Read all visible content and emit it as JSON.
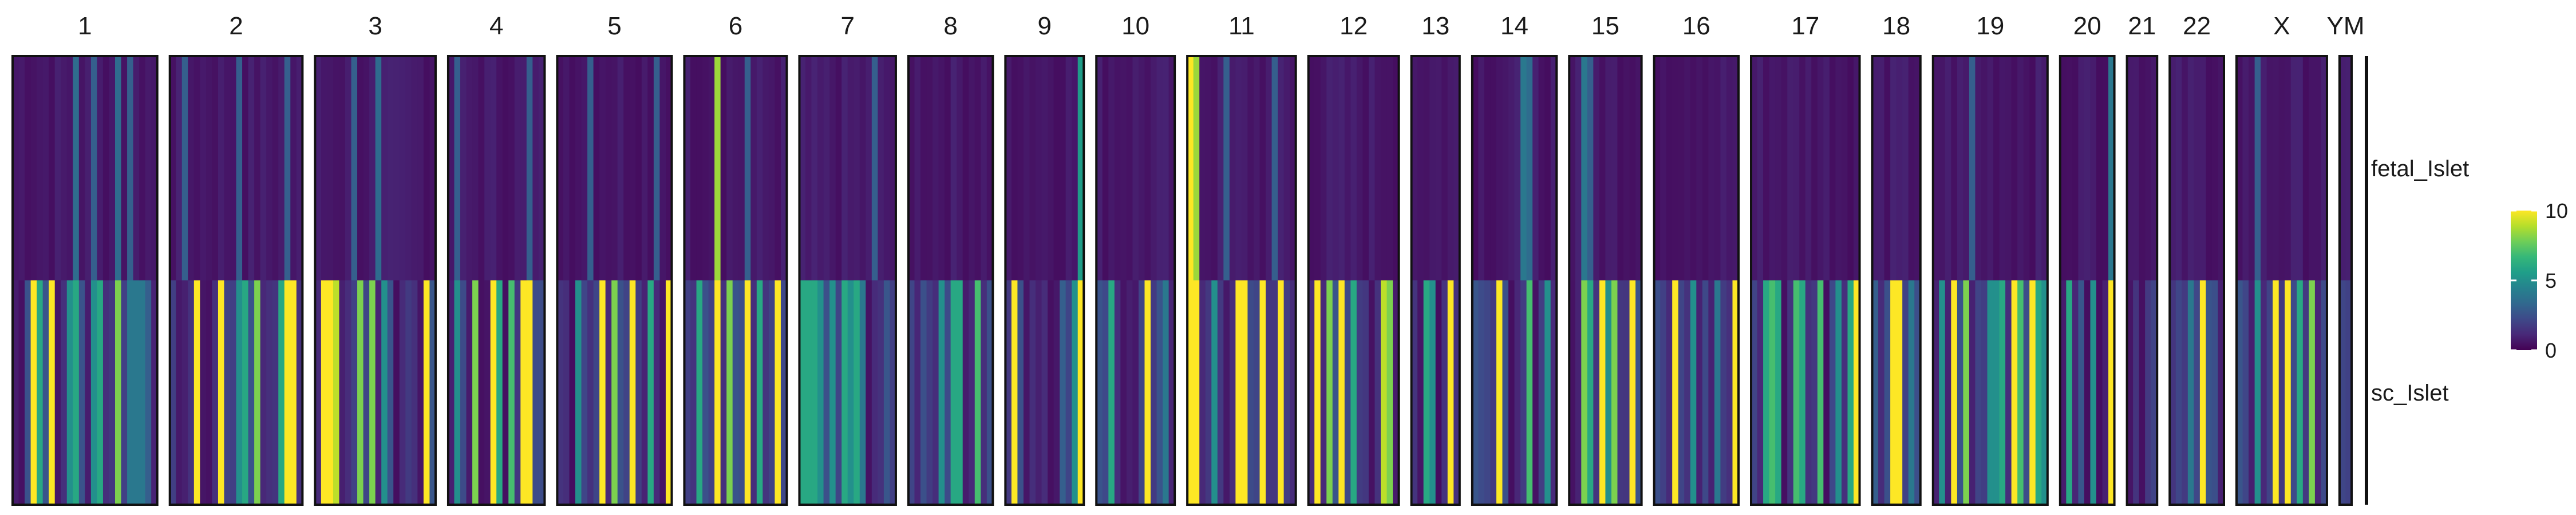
{
  "chart_data": {
    "type": "heatmap",
    "title": "",
    "xlabel": "",
    "ylabel": "",
    "rows": [
      "fetal_Islet",
      "sc_Islet"
    ],
    "color_scale": {
      "name": "viridis",
      "min": 0,
      "max": 10,
      "ticks": [
        0,
        5,
        10
      ],
      "stops": [
        "#440154",
        "#482878",
        "#3e4989",
        "#31688e",
        "#26828e",
        "#1f9e89",
        "#35b779",
        "#6ece58",
        "#b5de2b",
        "#fde725"
      ]
    },
    "background": [
      0.35,
      1.5
    ],
    "chromosomes": [
      {
        "label": "1",
        "bins": 24,
        "hot": [
          [
            10,
            0,
            3.5
          ],
          [
            13,
            0,
            3
          ],
          [
            17,
            0,
            3.5
          ],
          [
            19,
            0,
            3
          ],
          [
            3,
            1,
            10
          ],
          [
            4,
            1,
            6
          ],
          [
            6,
            1,
            10
          ],
          [
            9,
            1,
            5
          ],
          [
            10,
            1,
            6
          ],
          [
            13,
            1,
            5
          ],
          [
            14,
            1,
            6
          ],
          [
            17,
            1,
            8
          ],
          [
            19,
            1,
            4
          ],
          [
            20,
            1,
            4
          ],
          [
            21,
            1,
            4
          ],
          [
            22,
            1,
            3
          ]
        ]
      },
      {
        "label": "2",
        "bins": 22,
        "hot": [
          [
            2,
            0,
            3
          ],
          [
            11,
            0,
            3
          ],
          [
            19,
            0,
            3
          ],
          [
            4,
            1,
            10
          ],
          [
            8,
            1,
            10
          ],
          [
            11,
            1,
            5
          ],
          [
            12,
            1,
            6
          ],
          [
            14,
            1,
            8
          ],
          [
            18,
            1,
            6
          ],
          [
            19,
            1,
            10
          ],
          [
            20,
            1,
            10
          ]
        ]
      },
      {
        "label": "3",
        "bins": 20,
        "hot": [
          [
            6,
            0,
            3
          ],
          [
            10,
            0,
            3.5
          ],
          [
            1,
            1,
            10
          ],
          [
            2,
            1,
            10
          ],
          [
            3,
            1,
            9
          ],
          [
            7,
            1,
            8
          ],
          [
            9,
            1,
            8
          ],
          [
            11,
            1,
            5
          ],
          [
            18,
            1,
            10
          ]
        ]
      },
      {
        "label": "4",
        "bins": 16,
        "hot": [
          [
            1,
            0,
            3
          ],
          [
            13,
            0,
            3
          ],
          [
            1,
            1,
            5
          ],
          [
            4,
            1,
            8
          ],
          [
            7,
            1,
            10
          ],
          [
            8,
            1,
            6
          ],
          [
            10,
            1,
            7
          ],
          [
            12,
            1,
            10
          ],
          [
            13,
            1,
            10
          ]
        ]
      },
      {
        "label": "5",
        "bins": 19,
        "hot": [
          [
            5,
            0,
            3
          ],
          [
            16,
            0,
            3
          ],
          [
            3,
            1,
            5
          ],
          [
            7,
            1,
            10
          ],
          [
            9,
            1,
            8
          ],
          [
            12,
            1,
            10
          ],
          [
            15,
            1,
            6
          ],
          [
            18,
            1,
            10
          ]
        ]
      },
      {
        "label": "6",
        "bins": 17,
        "hot": [
          [
            5,
            0,
            8.5
          ],
          [
            10,
            0,
            3
          ],
          [
            2,
            1,
            6
          ],
          [
            5,
            1,
            10
          ],
          [
            7,
            1,
            8
          ],
          [
            10,
            1,
            10
          ],
          [
            12,
            1,
            6
          ],
          [
            15,
            1,
            10
          ]
        ]
      },
      {
        "label": "7",
        "bins": 16,
        "hot": [
          [
            12,
            0,
            3
          ],
          [
            0,
            1,
            6
          ],
          [
            1,
            1,
            6
          ],
          [
            2,
            1,
            6
          ],
          [
            3,
            1,
            5
          ],
          [
            5,
            1,
            5
          ],
          [
            7,
            1,
            6
          ],
          [
            8,
            1,
            5
          ],
          [
            9,
            1,
            6
          ],
          [
            10,
            1,
            4
          ]
        ]
      },
      {
        "label": "8",
        "bins": 14,
        "hot": [
          [
            5,
            1,
            5
          ],
          [
            7,
            1,
            6
          ],
          [
            8,
            1,
            6
          ],
          [
            11,
            1,
            7
          ]
        ]
      },
      {
        "label": "9",
        "bins": 13,
        "hot": [
          [
            12,
            0,
            5.5
          ],
          [
            1,
            1,
            10
          ],
          [
            9,
            1,
            3
          ],
          [
            11,
            1,
            5
          ],
          [
            12,
            1,
            10
          ]
        ]
      },
      {
        "label": "10",
        "bins": 13,
        "hot": [
          [
            2,
            1,
            6
          ],
          [
            8,
            1,
            10
          ],
          [
            11,
            1,
            4
          ]
        ]
      },
      {
        "label": "11",
        "bins": 18,
        "hot": [
          [
            0,
            0,
            10
          ],
          [
            1,
            0,
            8.5
          ],
          [
            6,
            0,
            3
          ],
          [
            14,
            0,
            3
          ],
          [
            0,
            1,
            10
          ],
          [
            1,
            1,
            10
          ],
          [
            4,
            1,
            5
          ],
          [
            8,
            1,
            10
          ],
          [
            9,
            1,
            10
          ],
          [
            12,
            1,
            10
          ],
          [
            15,
            1,
            10
          ]
        ]
      },
      {
        "label": "12",
        "bins": 15,
        "hot": [
          [
            1,
            1,
            10
          ],
          [
            3,
            1,
            8
          ],
          [
            5,
            1,
            10
          ],
          [
            7,
            1,
            6
          ],
          [
            12,
            1,
            9
          ],
          [
            13,
            1,
            8
          ]
        ]
      },
      {
        "label": "13",
        "bins": 8,
        "hot": [
          [
            2,
            1,
            6
          ],
          [
            3,
            1,
            5
          ],
          [
            6,
            1,
            10
          ]
        ]
      },
      {
        "label": "14",
        "bins": 14,
        "hot": [
          [
            8,
            0,
            4
          ],
          [
            9,
            0,
            3.5
          ],
          [
            4,
            1,
            10
          ],
          [
            9,
            1,
            7
          ],
          [
            12,
            1,
            5
          ]
        ]
      },
      {
        "label": "15",
        "bins": 12,
        "hot": [
          [
            2,
            0,
            4
          ],
          [
            3,
            0,
            3
          ],
          [
            2,
            1,
            8
          ],
          [
            3,
            1,
            6
          ],
          [
            5,
            1,
            10
          ],
          [
            6,
            1,
            5
          ],
          [
            7,
            1,
            8
          ],
          [
            10,
            1,
            10
          ]
        ]
      },
      {
        "label": "16",
        "bins": 14,
        "hot": [
          [
            3,
            1,
            10
          ],
          [
            6,
            1,
            5
          ],
          [
            10,
            1,
            4
          ],
          [
            13,
            1,
            10
          ]
        ]
      },
      {
        "label": "17",
        "bins": 18,
        "hot": [
          [
            2,
            1,
            6
          ],
          [
            3,
            1,
            7
          ],
          [
            4,
            1,
            6
          ],
          [
            7,
            1,
            7
          ],
          [
            8,
            1,
            6
          ],
          [
            11,
            1,
            7
          ],
          [
            14,
            1,
            5
          ],
          [
            16,
            1,
            6
          ],
          [
            17,
            1,
            10
          ]
        ]
      },
      {
        "label": "18",
        "bins": 8,
        "hot": [
          [
            0,
            1,
            3
          ],
          [
            3,
            1,
            10
          ],
          [
            4,
            1,
            10
          ],
          [
            6,
            1,
            4
          ]
        ]
      },
      {
        "label": "19",
        "bins": 19,
        "hot": [
          [
            6,
            0,
            3
          ],
          [
            1,
            1,
            5
          ],
          [
            3,
            1,
            10
          ],
          [
            5,
            1,
            8
          ],
          [
            9,
            1,
            5
          ],
          [
            10,
            1,
            5
          ],
          [
            11,
            1,
            6
          ],
          [
            13,
            1,
            10
          ],
          [
            14,
            1,
            7
          ],
          [
            16,
            1,
            10
          ],
          [
            17,
            1,
            6
          ],
          [
            18,
            1,
            5
          ]
        ]
      },
      {
        "label": "20",
        "bins": 9,
        "hot": [
          [
            8,
            0,
            4
          ],
          [
            1,
            1,
            6
          ],
          [
            5,
            1,
            5
          ],
          [
            8,
            1,
            10
          ]
        ]
      },
      {
        "label": "21",
        "bins": 5,
        "hot": []
      },
      {
        "label": "22",
        "bins": 9,
        "hot": [
          [
            3,
            1,
            4
          ],
          [
            5,
            1,
            10
          ]
        ]
      },
      {
        "label": "X",
        "bins": 15,
        "hot": [
          [
            3,
            0,
            3
          ],
          [
            3,
            1,
            5
          ],
          [
            6,
            1,
            10
          ],
          [
            8,
            1,
            10
          ],
          [
            10,
            1,
            6
          ],
          [
            12,
            1,
            8
          ]
        ]
      },
      {
        "label": "YM",
        "bins": 2,
        "hot": []
      }
    ]
  }
}
